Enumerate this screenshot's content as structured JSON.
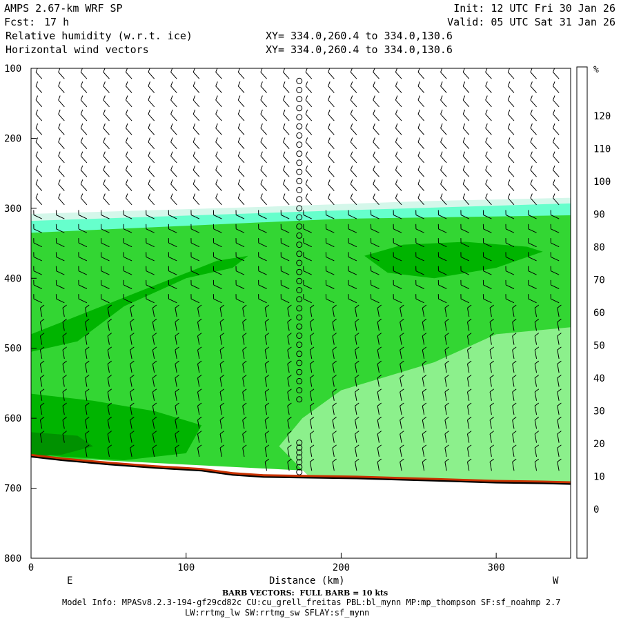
{
  "header": {
    "title": "AMPS 2.67-km WRF SP",
    "fcst_label": "Fcst:",
    "fcst_value": "17 h",
    "field1": "Relative humidity (w.r.t. ice)",
    "field2": "Horizontal wind vectors",
    "xy1": "XY= 334.0,260.4 to 334.0,130.6",
    "xy2": "XY= 334.0,260.4 to 334.0,130.6",
    "init": "Init: 12 UTC Fri 30 Jan 26",
    "valid": "Valid: 05 UTC Sat 31 Jan 26"
  },
  "footer": {
    "barb_note": "BARB VECTORS:  FULL BARB = 10 kts",
    "model_info": "Model Info: MPASv8.2.3-194-gf29cd82c CU:cu_grell_freitas PBL:bl_mynn MP:mp_thompson SF:sf_noahmp 2.7",
    "model_info2": "LW:rrtmg_lw SW:rrtmg_sw SFLAY:sf_mynn"
  },
  "chart_data": {
    "type": "heatmap",
    "xlabel": "Distance (km)",
    "ylabel": "",
    "x_left_label": "E",
    "x_right_label": "W",
    "xlim": [
      0,
      348
    ],
    "ylim": [
      800,
      100
    ],
    "x_ticks": [
      0,
      100,
      200,
      300
    ],
    "y_ticks": [
      100,
      200,
      300,
      400,
      500,
      600,
      700,
      800
    ],
    "colorbar": {
      "unit": "%",
      "levels": [
        0,
        10,
        20,
        30,
        40,
        50,
        60,
        70,
        80,
        90,
        100,
        110,
        120
      ],
      "colors": [
        "#ffffff",
        "#ffffff",
        "#ffffff",
        "#ffffff",
        "#d4f7ea",
        "#66ffcc",
        "#33e6b3",
        "#8cf08c",
        "#66e866",
        "#33d633",
        "#00b400",
        "#009100",
        "#3c6e00",
        "#c83200",
        "#ff0000"
      ]
    },
    "terrain_pressure": [
      {
        "x": 0,
        "p": 655
      },
      {
        "x": 20,
        "p": 660
      },
      {
        "x": 50,
        "p": 666
      },
      {
        "x": 80,
        "p": 671
      },
      {
        "x": 110,
        "p": 675
      },
      {
        "x": 130,
        "p": 681
      },
      {
        "x": 150,
        "p": 684
      },
      {
        "x": 180,
        "p": 685
      },
      {
        "x": 210,
        "p": 686
      },
      {
        "x": 240,
        "p": 688
      },
      {
        "x": 270,
        "p": 690
      },
      {
        "x": 300,
        "p": 692
      },
      {
        "x": 330,
        "p": 693
      },
      {
        "x": 348,
        "p": 694
      }
    ],
    "regions": [
      {
        "rh": 20,
        "desc": "dry upper layer",
        "poly": [
          [
            0,
            100
          ],
          [
            348,
            100
          ],
          [
            348,
            285
          ],
          [
            250,
            290
          ],
          [
            150,
            298
          ],
          [
            60,
            304
          ],
          [
            0,
            308
          ]
        ]
      },
      {
        "rh": 40,
        "desc": "moist band",
        "poly": [
          [
            0,
            308
          ],
          [
            60,
            304
          ],
          [
            150,
            298
          ],
          [
            250,
            290
          ],
          [
            348,
            285
          ],
          [
            348,
            300
          ],
          [
            250,
            310
          ],
          [
            150,
            318
          ],
          [
            60,
            324
          ],
          [
            0,
            328
          ]
        ]
      },
      {
        "rh": 50,
        "desc": "moist band",
        "poly": [
          [
            0,
            318
          ],
          [
            80,
            312
          ],
          [
            200,
            303
          ],
          [
            348,
            293
          ],
          [
            348,
            312
          ],
          [
            200,
            322
          ],
          [
            80,
            336
          ],
          [
            0,
            346
          ]
        ]
      },
      {
        "rh": 70,
        "desc": "mid layer",
        "poly": [
          [
            0,
            335
          ],
          [
            100,
            325
          ],
          [
            200,
            315
          ],
          [
            348,
            310
          ],
          [
            348,
            694
          ],
          [
            0,
            655
          ]
        ]
      },
      {
        "rh": 75,
        "desc": "lower right light",
        "poly": [
          [
            200,
            560
          ],
          [
            260,
            520
          ],
          [
            300,
            480
          ],
          [
            348,
            470
          ],
          [
            348,
            694
          ],
          [
            240,
            688
          ],
          [
            180,
            685
          ],
          [
            160,
            640
          ],
          [
            175,
            600
          ]
        ]
      },
      {
        "rh": 80,
        "desc": "dark ribbon left",
        "poly": [
          [
            0,
            480
          ],
          [
            40,
            445
          ],
          [
            80,
            410
          ],
          [
            120,
            375
          ],
          [
            140,
            368
          ],
          [
            130,
            385
          ],
          [
            100,
            400
          ],
          [
            60,
            440
          ],
          [
            30,
            490
          ],
          [
            0,
            505
          ]
        ]
      },
      {
        "rh": 85,
        "desc": "upper right blob",
        "poly": [
          [
            215,
            368
          ],
          [
            240,
            352
          ],
          [
            280,
            348
          ],
          [
            320,
            355
          ],
          [
            330,
            362
          ],
          [
            300,
            385
          ],
          [
            260,
            400
          ],
          [
            230,
            392
          ]
        ]
      },
      {
        "rh": 85,
        "desc": "lower left blob",
        "poly": [
          [
            0,
            565
          ],
          [
            40,
            575
          ],
          [
            80,
            590
          ],
          [
            110,
            610
          ],
          [
            100,
            650
          ],
          [
            60,
            660
          ],
          [
            20,
            655
          ],
          [
            0,
            650
          ]
        ]
      },
      {
        "rh": 95,
        "desc": "near surface",
        "poly": [
          [
            0,
            620
          ],
          [
            30,
            625
          ],
          [
            40,
            640
          ],
          [
            20,
            652
          ],
          [
            0,
            655
          ]
        ]
      }
    ],
    "sounding_x": 173
  }
}
